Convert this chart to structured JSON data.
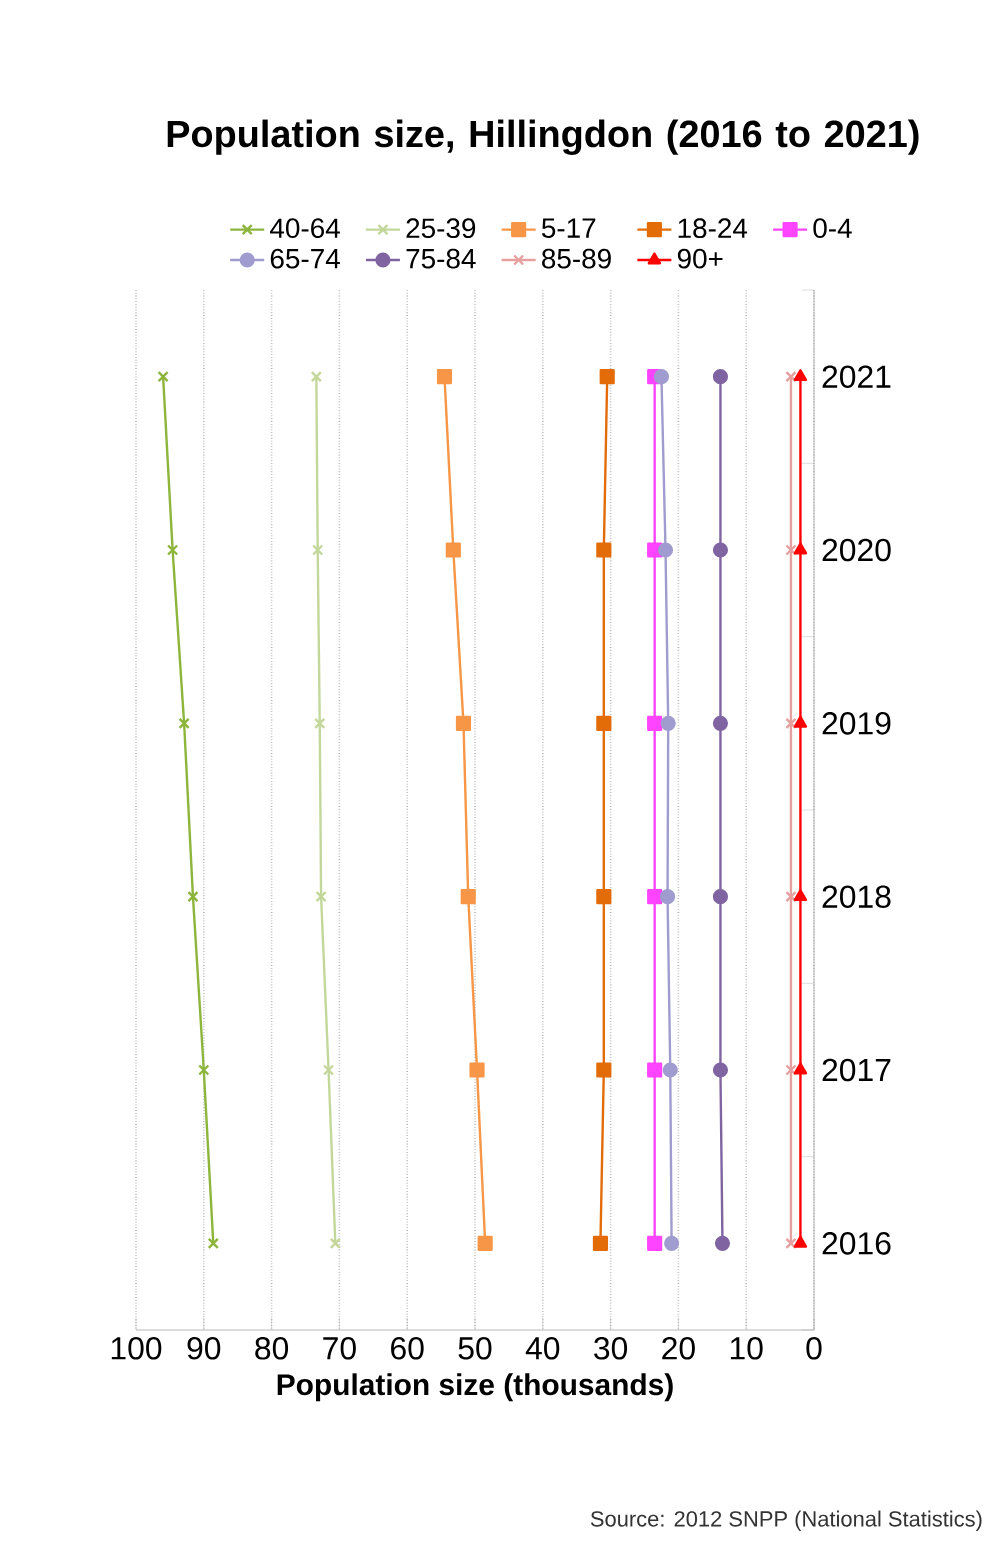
{
  "chart_data": {
    "type": "line",
    "orientation": "horizontal",
    "title": "Population size, Hillingdon (2016 to 2021)",
    "xlabel": "Population size (thousands)",
    "categories": [
      "2021",
      "2020",
      "2019",
      "2018",
      "2017",
      "2016"
    ],
    "series": [
      {
        "name": "40-64",
        "color": "#8db53c",
        "marker": "cross",
        "values": [
          96,
          94.6,
          92.9,
          91.6,
          90,
          88.6
        ]
      },
      {
        "name": "25-39",
        "color": "#c4d79b",
        "marker": "cross",
        "values": [
          73.4,
          73.2,
          72.9,
          72.7,
          71.6,
          70.6
        ]
      },
      {
        "name": "5-17",
        "color": "#f79646",
        "marker": "square",
        "values": [
          54.5,
          53.2,
          51.7,
          51,
          49.7,
          48.5
        ]
      },
      {
        "name": "18-24",
        "color": "#e36c09",
        "marker": "square",
        "values": [
          30.5,
          31,
          31,
          31,
          31,
          31.5
        ]
      },
      {
        "name": "0-4",
        "color": "#ff44ff",
        "marker": "square",
        "values": [
          23.5,
          23.5,
          23.5,
          23.5,
          23.5,
          23.5
        ]
      },
      {
        "name": "65-74",
        "color": "#a09ccf",
        "marker": "circle",
        "values": [
          22.5,
          21.9,
          21.5,
          21.6,
          21.2,
          21
        ]
      },
      {
        "name": "75-84",
        "color": "#8064a2",
        "marker": "circle",
        "values": [
          13.8,
          13.8,
          13.8,
          13.8,
          13.8,
          13.5
        ]
      },
      {
        "name": "85-89",
        "color": "#e6a0a0",
        "marker": "cross",
        "values": [
          3.4,
          3.4,
          3.4,
          3.4,
          3.4,
          3.4
        ]
      },
      {
        "name": "90+",
        "color": "#ff0000",
        "marker": "triangle",
        "values": [
          2,
          2,
          2,
          2,
          2,
          2
        ]
      }
    ],
    "xlim": [
      100,
      0
    ],
    "xticks": [
      100,
      90,
      80,
      70,
      60,
      50,
      40,
      30,
      20,
      10,
      0
    ],
    "grid": "x",
    "legend": "top",
    "annotations": [
      "Source: 2012 SNPP (National Statistics)"
    ]
  }
}
